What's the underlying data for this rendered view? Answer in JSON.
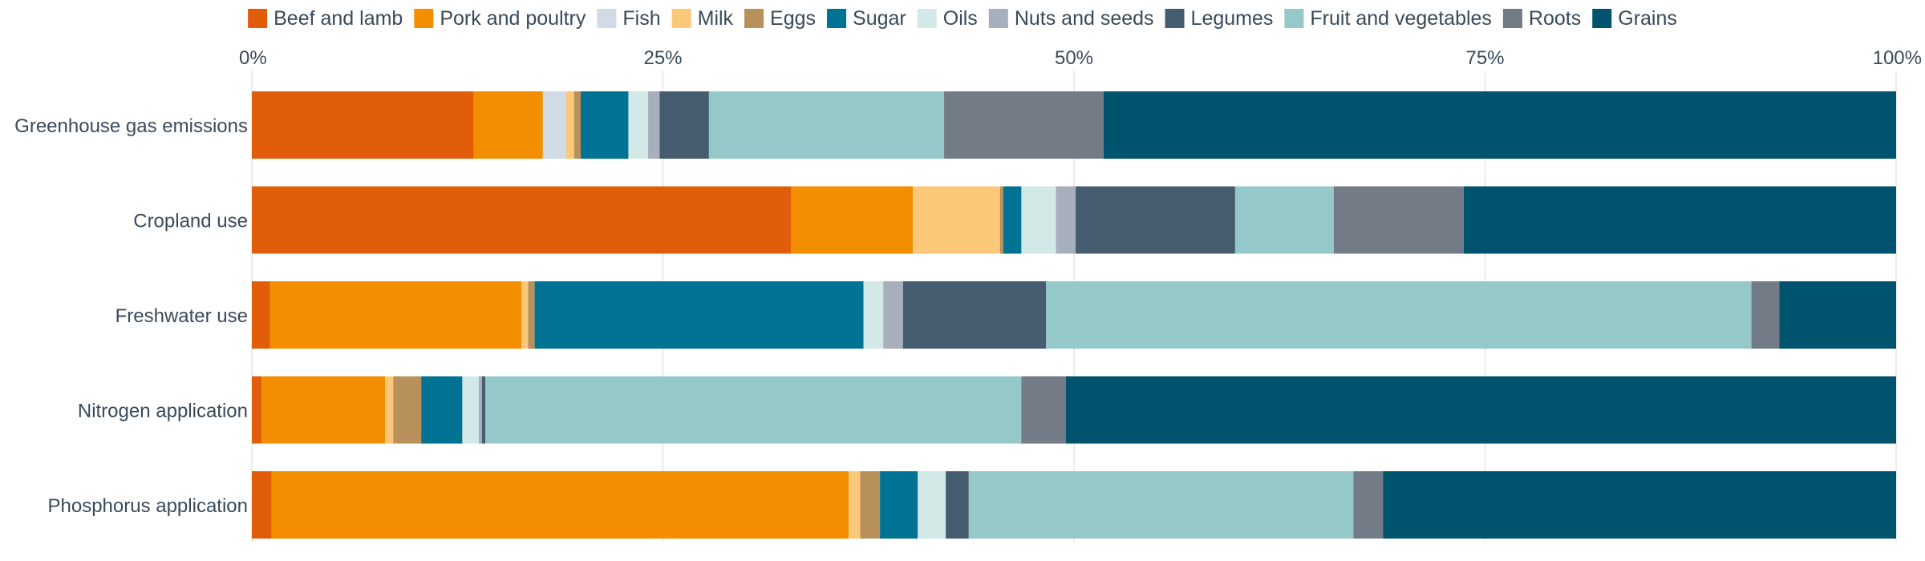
{
  "chart_data": {
    "type": "bar",
    "orientation": "horizontal",
    "stacked": true,
    "normalized_percent": true,
    "legend_position": "top",
    "grid": true,
    "xlim": [
      0,
      100
    ],
    "ticks": [
      "0%",
      "25%",
      "50%",
      "75%",
      "100%"
    ],
    "tick_values": [
      0,
      25,
      50,
      75,
      100
    ],
    "categories": [
      "Greenhouse gas emissions",
      "Cropland use",
      "Freshwater use",
      "Nitrogen application",
      "Phosphorus application"
    ],
    "series": [
      {
        "name": "Beef and lamb",
        "color": "#e15d0a",
        "values": [
          13.5,
          32.8,
          1.1,
          0.6,
          1.2
        ]
      },
      {
        "name": "Pork and poultry",
        "color": "#f28e00",
        "values": [
          4.2,
          7.4,
          15.3,
          7.5,
          35.1
        ]
      },
      {
        "name": "Fish",
        "color": "#d2dae6",
        "values": [
          1.4,
          0.0,
          0.0,
          0.0,
          0.0
        ]
      },
      {
        "name": "Milk",
        "color": "#fbc87a",
        "values": [
          0.5,
          5.3,
          0.4,
          0.5,
          0.7
        ]
      },
      {
        "name": "Eggs",
        "color": "#b8905a",
        "values": [
          0.4,
          0.2,
          0.4,
          1.7,
          1.2
        ]
      },
      {
        "name": "Sugar",
        "color": "#007395",
        "values": [
          2.9,
          1.1,
          20.0,
          2.5,
          2.3
        ]
      },
      {
        "name": "Oils",
        "color": "#d2e9e8",
        "values": [
          1.2,
          2.1,
          1.2,
          1.0,
          1.7
        ]
      },
      {
        "name": "Nuts and seeds",
        "color": "#a6afbb",
        "values": [
          0.7,
          1.2,
          1.2,
          0.2,
          0.0
        ]
      },
      {
        "name": "Legumes",
        "color": "#465c6f",
        "values": [
          3.0,
          9.7,
          8.7,
          0.2,
          1.4
        ]
      },
      {
        "name": "Fruit and vegetables",
        "color": "#95c8c8",
        "values": [
          14.3,
          6.0,
          42.9,
          32.6,
          23.4
        ]
      },
      {
        "name": "Roots",
        "color": "#737b86",
        "values": [
          9.7,
          7.9,
          1.7,
          2.7,
          1.8
        ]
      },
      {
        "name": "Grains",
        "color": "#00536d",
        "values": [
          48.2,
          26.3,
          7.1,
          50.5,
          31.2
        ]
      }
    ]
  }
}
